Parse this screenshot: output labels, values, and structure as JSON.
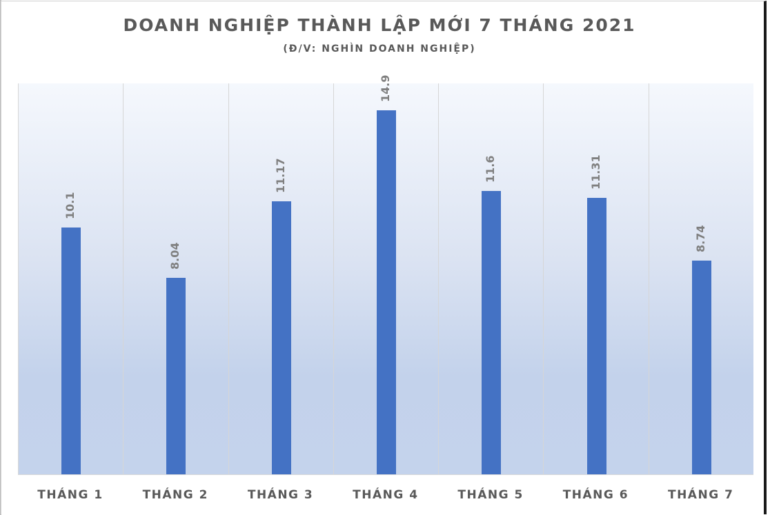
{
  "chart_data": {
    "type": "bar",
    "title": "DOANH NGHIỆP THÀNH LẬP MỚI 7 THÁNG 2021",
    "subtitle": "(Đ/V: NGHÌN DOANH NGHIỆP)",
    "categories": [
      "THÁNG 1",
      "THÁNG 2",
      "THÁNG 3",
      "THÁNG 4",
      "THÁNG 5",
      "THÁNG 6",
      "THÁNG 7"
    ],
    "values": [
      10.1,
      8.04,
      11.17,
      14.9,
      11.6,
      11.31,
      8.74
    ],
    "value_labels": [
      "10.1",
      "8.04",
      "11.17",
      "14.9",
      "11.6",
      "11.31",
      "8.74"
    ],
    "xlabel": "",
    "ylabel": "",
    "ylim": [
      0,
      16
    ],
    "grid": "vertical category separators",
    "legend": "none",
    "bar_color": "#4472c4",
    "label_color": "#7f7f7f"
  }
}
